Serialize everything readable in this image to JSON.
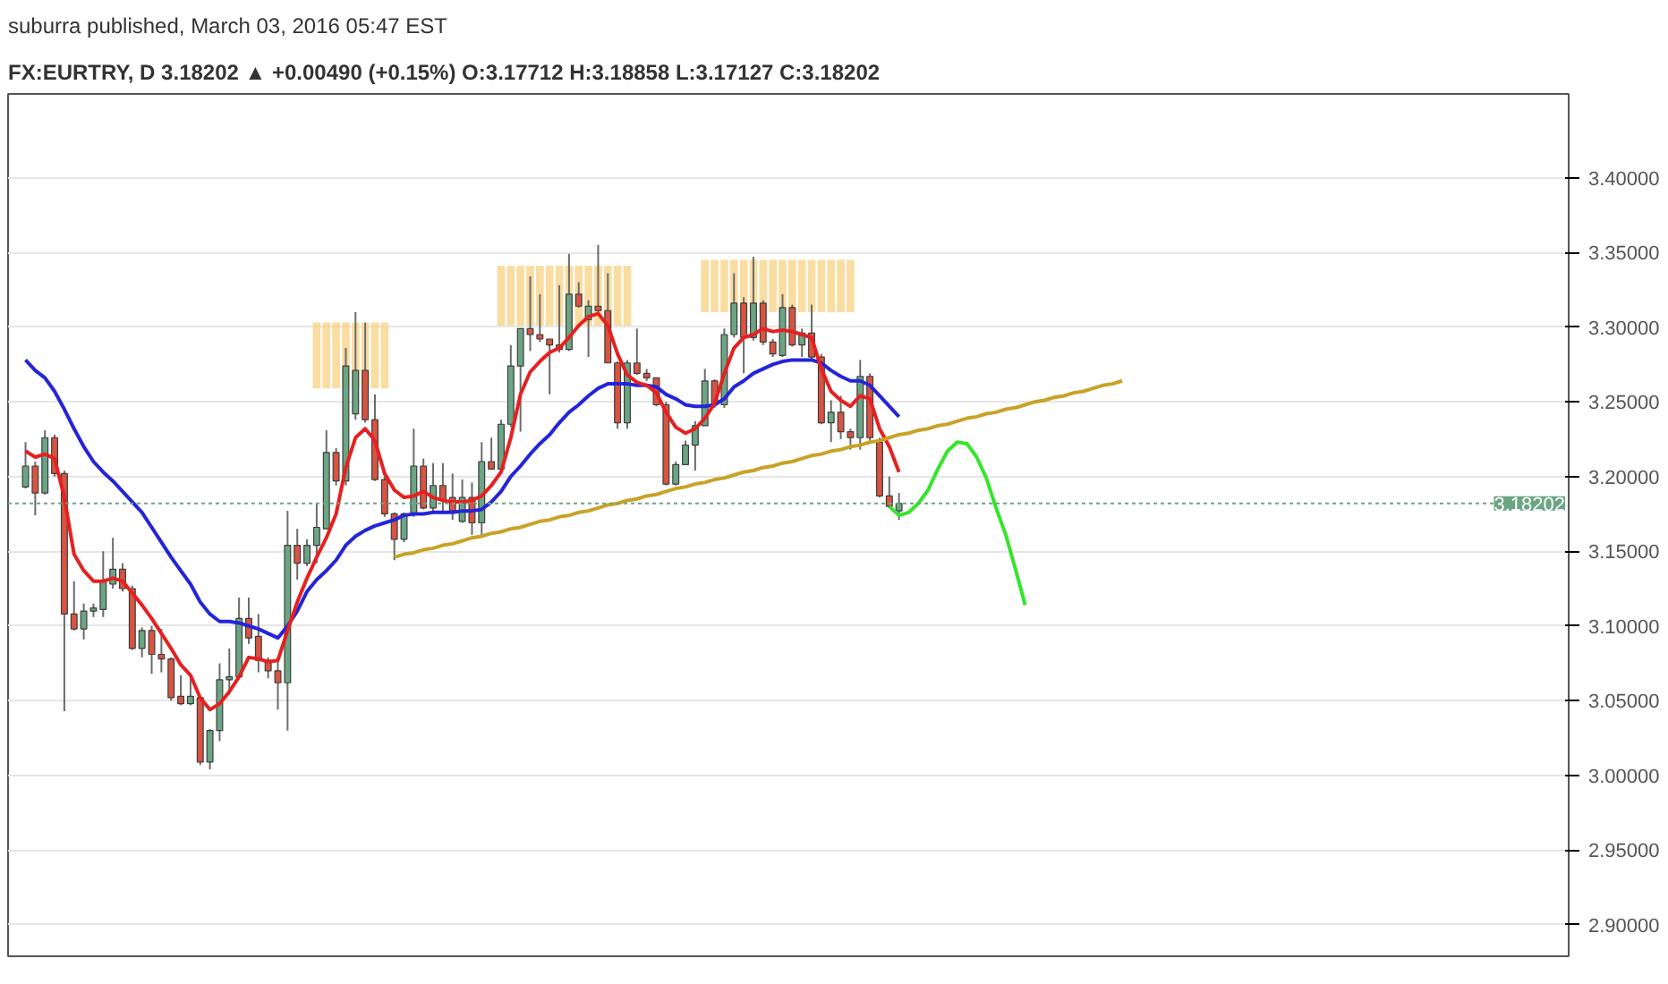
{
  "chart_data": {
    "type": "candlestick",
    "subtitle": "suburra published, March 03, 2016 05:47 EST",
    "title": "FX:EURTRY, D 3.18202 ▲ +0.00490 (+0.15%) O:3.17712 H:3.18858 L:3.17127 C:3.18202",
    "categories": [
      null,
      null,
      null,
      null,
      null,
      null,
      null,
      null,
      null,
      null,
      null,
      null,
      null,
      null,
      null,
      null,
      null,
      null,
      null,
      null,
      null,
      null,
      null,
      null,
      null,
      null,
      null,
      null,
      null,
      null,
      null,
      null,
      null,
      null,
      null,
      null,
      null,
      null,
      null,
      null,
      null,
      null,
      null,
      null,
      null,
      null,
      null,
      null,
      null,
      null,
      null,
      null,
      null,
      null,
      null,
      null,
      null,
      null,
      null,
      null,
      null,
      null,
      null,
      null,
      null,
      null,
      null,
      null,
      null,
      null,
      null,
      null,
      null,
      null,
      null,
      null,
      null,
      null,
      null,
      null,
      null,
      null,
      null,
      null,
      null,
      null,
      null,
      null,
      null,
      null,
      null,
      null,
      null,
      null,
      null,
      null,
      null,
      null,
      null,
      null,
      null,
      null,
      null,
      null,
      null,
      null,
      null,
      null,
      null,
      null,
      null,
      null,
      null,
      null
    ],
    "ohlc": [
      [
        3.193,
        3.223,
        3.192,
        3.207
      ],
      [
        3.207,
        3.21,
        3.174,
        3.189
      ],
      [
        3.189,
        3.231,
        3.188,
        3.226
      ],
      [
        3.226,
        3.228,
        3.2,
        3.202
      ],
      [
        3.202,
        3.204,
        3.043,
        3.108
      ],
      [
        3.108,
        3.13,
        3.097,
        3.098
      ],
      [
        3.098,
        3.115,
        3.091,
        3.11
      ],
      [
        3.11,
        3.115,
        3.106,
        3.112
      ],
      [
        3.111,
        3.15,
        3.106,
        3.13
      ],
      [
        3.128,
        3.159,
        3.125,
        3.138
      ],
      [
        3.138,
        3.142,
        3.123,
        3.125
      ],
      [
        3.125,
        3.127,
        3.084,
        3.085
      ],
      [
        3.085,
        3.099,
        3.079,
        3.097
      ],
      [
        3.097,
        3.1,
        3.068,
        3.081
      ],
      [
        3.081,
        3.098,
        3.069,
        3.078
      ],
      [
        3.078,
        3.079,
        3.05,
        3.052
      ],
      [
        3.053,
        3.067,
        3.047,
        3.048
      ],
      [
        3.048,
        3.065,
        3.047,
        3.053
      ],
      [
        3.052,
        3.053,
        3.007,
        3.009
      ],
      [
        3.009,
        3.031,
        3.004,
        3.03
      ],
      [
        3.03,
        3.075,
        3.023,
        3.064
      ],
      [
        3.064,
        3.085,
        3.054,
        3.066
      ],
      [
        3.066,
        3.119,
        3.065,
        3.105
      ],
      [
        3.105,
        3.119,
        3.088,
        3.092
      ],
      [
        3.093,
        3.108,
        3.069,
        3.077
      ],
      [
        3.077,
        3.079,
        3.065,
        3.07
      ],
      [
        3.07,
        3.079,
        3.044,
        3.062
      ],
      [
        3.062,
        3.177,
        3.03,
        3.154
      ],
      [
        3.154,
        3.165,
        3.131,
        3.142
      ],
      [
        3.142,
        3.158,
        3.14,
        3.154
      ],
      [
        3.154,
        3.182,
        3.142,
        3.166
      ],
      [
        3.165,
        3.231,
        3.165,
        3.216
      ],
      [
        3.216,
        3.219,
        3.194,
        3.197
      ],
      [
        3.197,
        3.286,
        3.194,
        3.274
      ],
      [
        3.242,
        3.31,
        3.238,
        3.271
      ],
      [
        3.271,
        3.303,
        3.236,
        3.238
      ],
      [
        3.238,
        3.255,
        3.197,
        3.198
      ],
      [
        3.198,
        3.2,
        3.173,
        3.175
      ],
      [
        3.175,
        3.176,
        3.144,
        3.158
      ],
      [
        3.158,
        3.176,
        3.156,
        3.175
      ],
      [
        3.175,
        3.232,
        3.173,
        3.207
      ],
      [
        3.207,
        3.212,
        3.178,
        3.179
      ],
      [
        3.179,
        3.209,
        3.177,
        3.194
      ],
      [
        3.194,
        3.209,
        3.175,
        3.184
      ],
      [
        3.186,
        3.202,
        3.171,
        3.177
      ],
      [
        3.17,
        3.198,
        3.169,
        3.186
      ],
      [
        3.186,
        3.196,
        3.161,
        3.169
      ],
      [
        3.169,
        3.223,
        3.161,
        3.21
      ],
      [
        3.21,
        3.226,
        3.205,
        3.205
      ],
      [
        3.205,
        3.238,
        3.203,
        3.235
      ],
      [
        3.235,
        3.288,
        3.233,
        3.274
      ],
      [
        3.274,
        3.299,
        3.23,
        3.299
      ],
      [
        3.299,
        3.334,
        3.284,
        3.295
      ],
      [
        3.295,
        3.322,
        3.29,
        3.292
      ],
      [
        3.292,
        3.292,
        3.255,
        3.288
      ],
      [
        3.288,
        3.328,
        3.283,
        3.285
      ],
      [
        3.285,
        3.349,
        3.284,
        3.322
      ],
      [
        3.322,
        3.33,
        3.313,
        3.314
      ],
      [
        3.305,
        3.318,
        3.28,
        3.314
      ],
      [
        3.314,
        3.355,
        3.31,
        3.311
      ],
      [
        3.311,
        3.336,
        3.276,
        3.276
      ],
      [
        3.276,
        3.277,
        3.232,
        3.236
      ],
      [
        3.236,
        3.278,
        3.232,
        3.276
      ],
      [
        3.276,
        3.299,
        3.268,
        3.269
      ],
      [
        3.269,
        3.272,
        3.264,
        3.266
      ],
      [
        3.266,
        3.266,
        3.247,
        3.248
      ],
      [
        3.248,
        3.25,
        3.194,
        3.195
      ],
      [
        3.195,
        3.21,
        3.194,
        3.208
      ],
      [
        3.208,
        3.224,
        3.208,
        3.221
      ],
      [
        3.221,
        3.237,
        3.204,
        3.234
      ],
      [
        3.234,
        3.272,
        3.234,
        3.264
      ],
      [
        3.264,
        3.265,
        3.246,
        3.248
      ],
      [
        3.248,
        3.299,
        3.246,
        3.295
      ],
      [
        3.295,
        3.336,
        3.293,
        3.316
      ],
      [
        3.316,
        3.32,
        3.269,
        3.293
      ],
      [
        3.293,
        3.347,
        3.291,
        3.316
      ],
      [
        3.316,
        3.318,
        3.288,
        3.29
      ],
      [
        3.29,
        3.292,
        3.28,
        3.282
      ],
      [
        3.281,
        3.322,
        3.28,
        3.313
      ],
      [
        3.313,
        3.315,
        3.287,
        3.288
      ],
      [
        3.288,
        3.299,
        3.28,
        3.296
      ],
      [
        3.296,
        3.315,
        3.278,
        3.28
      ],
      [
        3.28,
        3.282,
        3.235,
        3.236
      ],
      [
        3.236,
        3.251,
        3.223,
        3.243
      ],
      [
        3.243,
        3.254,
        3.225,
        3.23
      ],
      [
        3.23,
        3.232,
        3.218,
        3.226
      ],
      [
        3.226,
        3.278,
        3.218,
        3.267
      ],
      [
        3.267,
        3.269,
        3.224,
        3.226
      ],
      [
        3.223,
        3.226,
        3.186,
        3.187
      ],
      [
        3.187,
        3.2,
        3.179,
        3.18
      ],
      [
        3.177,
        3.189,
        3.171,
        3.182
      ],
      null,
      null,
      null,
      null,
      null,
      null,
      null,
      null,
      null,
      null,
      null,
      null,
      null,
      null,
      null,
      null,
      null,
      null,
      null,
      null,
      null,
      null,
      null
    ],
    "colors": [
      "#6ba583",
      "#d75442",
      "#6ba583",
      "#d75442",
      "#d75442",
      "#d75442",
      "#6ba583",
      "#6ba583",
      "#6ba583",
      "#6ba583",
      "#d75442",
      "#d75442",
      "#6ba583",
      "#d75442",
      "#d75442",
      "#d75442",
      "#d75442",
      "#6ba583",
      "#d75442",
      "#6ba583",
      "#6ba583",
      "#6ba583",
      "#6ba583",
      "#d75442",
      "#d75442",
      "#d75442",
      "#d75442",
      "#6ba583",
      "#d75442",
      "#6ba583",
      "#6ba583",
      "#6ba583",
      "#d75442",
      "#6ba583",
      "#6ba583",
      "#d75442",
      "#d75442",
      "#d75442",
      "#d75442",
      "#6ba583",
      "#6ba583",
      "#d75442",
      "#6ba583",
      "#d75442",
      "#d75442",
      "#6ba583",
      "#d75442",
      "#6ba583",
      "#d75442",
      "#6ba583",
      "#6ba583",
      "#6ba583",
      "#d75442",
      "#d75442",
      "#d75442",
      "#d75442",
      "#6ba583",
      "#d75442",
      "#6ba583",
      "#d75442",
      "#d75442",
      "#d75442",
      "#6ba583",
      "#d75442",
      "#d75442",
      "#d75442",
      "#d75442",
      "#6ba583",
      "#6ba583",
      "#6ba583",
      "#6ba583",
      "#d75442",
      "#6ba583",
      "#6ba583",
      "#d75442",
      "#6ba583",
      "#d75442",
      "#d75442",
      "#6ba583",
      "#d75442",
      "#6ba583",
      "#d75442",
      "#d75442",
      "#6ba583",
      "#d75442",
      "#d75442",
      "#6ba583",
      "#d75442",
      "#d75442",
      "#d75442",
      "#6ba583",
      null,
      null,
      null,
      null,
      null,
      null,
      null,
      null,
      null,
      null,
      null,
      null,
      null,
      null,
      null,
      null,
      null,
      null,
      null,
      null,
      null,
      null,
      null
    ],
    "series": [
      {
        "type": "bar",
        "color": "#f7d58a",
        "base": [
          null,
          null,
          null,
          null,
          null,
          null,
          null,
          null,
          null,
          null,
          null,
          null,
          null,
          null,
          null,
          null,
          null,
          null,
          null,
          null,
          null,
          null,
          null,
          null,
          null,
          null,
          null,
          null,
          null,
          null,
          3.259,
          3.259,
          3.259,
          3.259,
          3.259,
          3.259,
          3.259,
          3.259,
          null,
          null,
          null,
          null,
          null,
          null,
          null,
          null,
          null,
          null,
          null,
          3.301,
          3.301,
          3.301,
          3.301,
          3.301,
          3.301,
          3.301,
          3.301,
          3.301,
          3.301,
          3.301,
          3.301,
          3.301,
          3.301,
          null,
          null,
          null,
          null,
          null,
          null,
          null,
          3.31,
          3.31,
          3.31,
          3.31,
          3.31,
          3.31,
          3.31,
          3.31,
          3.31,
          3.31,
          3.31,
          3.31,
          3.31,
          3.31,
          3.31,
          3.31,
          null,
          null,
          null,
          null,
          null,
          null,
          null,
          null,
          null,
          null,
          null,
          null,
          null,
          null,
          null,
          null,
          null,
          null,
          null,
          null,
          null,
          null,
          null,
          null,
          null,
          null,
          null,
          null
        ],
        "values": [
          null,
          null,
          null,
          null,
          null,
          null,
          null,
          null,
          null,
          null,
          null,
          null,
          null,
          null,
          null,
          null,
          null,
          null,
          null,
          null,
          null,
          null,
          null,
          null,
          null,
          null,
          null,
          null,
          null,
          null,
          0.044,
          0.044,
          0.044,
          0.044,
          0.044,
          0.044,
          0.044,
          0.044,
          null,
          null,
          null,
          null,
          null,
          null,
          null,
          null,
          null,
          null,
          null,
          0.04,
          0.04,
          0.04,
          0.04,
          0.04,
          0.04,
          0.04,
          0.04,
          0.04,
          0.04,
          0.04,
          0.04,
          0.04,
          0.04,
          null,
          null,
          null,
          null,
          null,
          null,
          null,
          0.035,
          0.035,
          0.035,
          0.035,
          0.035,
          0.035,
          0.035,
          0.035,
          0.035,
          0.035,
          0.035,
          0.035,
          0.035,
          0.035,
          0.035,
          0.035,
          null,
          null,
          null,
          null,
          null,
          null,
          null,
          null,
          null,
          null,
          null,
          null,
          null,
          null,
          null,
          null,
          null,
          null,
          null,
          null,
          null,
          null,
          null,
          null,
          null,
          null,
          null,
          null
        ]
      },
      {
        "type": "line",
        "color": "#2424d8",
        "values": [
          3.278,
          3.271,
          3.266,
          3.257,
          3.245,
          3.232,
          3.22,
          3.21,
          3.203,
          3.197,
          3.19,
          3.183,
          3.176,
          3.166,
          3.156,
          3.146,
          3.137,
          3.128,
          3.116,
          3.108,
          3.103,
          3.103,
          3.102,
          3.1,
          3.098,
          3.095,
          3.092,
          3.1,
          3.11,
          3.123,
          3.131,
          3.137,
          3.144,
          3.154,
          3.16,
          3.164,
          3.167,
          3.169,
          3.171,
          3.174,
          3.175,
          3.175,
          3.176,
          3.176,
          3.176,
          3.177,
          3.177,
          3.178,
          3.183,
          3.19,
          3.2,
          3.207,
          3.215,
          3.222,
          3.228,
          3.236,
          3.243,
          3.248,
          3.254,
          3.259,
          3.262,
          3.262,
          3.262,
          3.261,
          3.261,
          3.26,
          3.255,
          3.252,
          3.248,
          3.247,
          3.247,
          3.248,
          3.252,
          3.26,
          3.264,
          3.269,
          3.272,
          3.275,
          3.277,
          3.278,
          3.278,
          3.278,
          3.276,
          3.271,
          3.267,
          3.264,
          3.264,
          3.261,
          3.254,
          3.247,
          3.24,
          null,
          null,
          null,
          null,
          null,
          null,
          null,
          null,
          null,
          null,
          null,
          null,
          null,
          null,
          null,
          null,
          null,
          null,
          null,
          null,
          null,
          null,
          null
        ]
      },
      {
        "type": "line",
        "color": "#e62020",
        "values": [
          3.217,
          3.213,
          3.215,
          3.212,
          3.186,
          3.148,
          3.137,
          3.13,
          3.13,
          3.132,
          3.13,
          3.122,
          3.114,
          3.105,
          3.095,
          3.085,
          3.074,
          3.067,
          3.052,
          3.044,
          3.048,
          3.056,
          3.066,
          3.079,
          3.078,
          3.076,
          3.077,
          3.097,
          3.116,
          3.132,
          3.146,
          3.159,
          3.175,
          3.206,
          3.226,
          3.232,
          3.224,
          3.202,
          3.191,
          3.186,
          3.187,
          3.19,
          3.186,
          3.184,
          3.183,
          3.183,
          3.184,
          3.187,
          3.194,
          3.203,
          3.226,
          3.255,
          3.27,
          3.277,
          3.283,
          3.286,
          3.293,
          3.301,
          3.307,
          3.309,
          3.301,
          3.282,
          3.268,
          3.263,
          3.261,
          3.256,
          3.243,
          3.233,
          3.229,
          3.232,
          3.239,
          3.249,
          3.269,
          3.286,
          3.293,
          3.295,
          3.299,
          3.297,
          3.298,
          3.297,
          3.295,
          3.293,
          3.272,
          3.257,
          3.251,
          3.247,
          3.254,
          3.252,
          3.232,
          3.22,
          3.203,
          null,
          null,
          null,
          null,
          null,
          null,
          null,
          null,
          null,
          null,
          null,
          null,
          null,
          null,
          null,
          null,
          null,
          null,
          null,
          null,
          null,
          null,
          null
        ]
      },
      {
        "type": "line",
        "color": "#c9a227",
        "values": [
          null,
          null,
          null,
          null,
          null,
          null,
          null,
          null,
          null,
          null,
          null,
          null,
          null,
          null,
          null,
          null,
          null,
          null,
          null,
          null,
          null,
          null,
          null,
          null,
          null,
          null,
          null,
          null,
          null,
          null,
          null,
          null,
          null,
          null,
          null,
          null,
          null,
          null,
          3.146,
          3.148,
          3.149,
          3.151,
          3.152,
          3.154,
          3.155,
          3.157,
          3.159,
          3.16,
          3.162,
          3.163,
          3.165,
          3.166,
          3.168,
          3.17,
          3.171,
          3.173,
          3.174,
          3.176,
          3.177,
          3.179,
          3.181,
          3.182,
          3.184,
          3.185,
          3.187,
          3.188,
          3.19,
          3.192,
          3.193,
          3.195,
          3.196,
          3.198,
          3.199,
          3.201,
          3.203,
          3.204,
          3.206,
          3.207,
          3.209,
          3.21,
          3.212,
          3.214,
          3.215,
          3.217,
          3.218,
          3.22,
          3.221,
          3.223,
          3.224,
          3.226,
          3.228,
          3.229,
          3.231,
          3.232,
          3.234,
          3.235,
          3.237,
          3.239,
          3.24,
          3.242,
          3.243,
          3.245,
          3.246,
          3.248,
          3.25,
          3.251,
          3.253,
          3.254,
          3.256,
          3.257,
          3.259,
          3.261,
          3.262,
          3.264
        ]
      },
      {
        "type": "line",
        "color": "#33e62b",
        "values": [
          null,
          null,
          null,
          null,
          null,
          null,
          null,
          null,
          null,
          null,
          null,
          null,
          null,
          null,
          null,
          null,
          null,
          null,
          null,
          null,
          null,
          null,
          null,
          null,
          null,
          null,
          null,
          null,
          null,
          null,
          null,
          null,
          null,
          null,
          null,
          null,
          null,
          null,
          null,
          null,
          null,
          null,
          null,
          null,
          null,
          null,
          null,
          null,
          null,
          null,
          null,
          null,
          null,
          null,
          null,
          null,
          null,
          null,
          null,
          null,
          null,
          null,
          null,
          null,
          null,
          null,
          null,
          null,
          null,
          null,
          null,
          null,
          null,
          null,
          null,
          null,
          null,
          null,
          null,
          null,
          null,
          null,
          null,
          null,
          null,
          null,
          null,
          null,
          null,
          3.18,
          3.174,
          3.176,
          3.182,
          3.191,
          3.205,
          3.217,
          3.223,
          3.222,
          3.213,
          3.199,
          3.179,
          3.161,
          3.138,
          3.114,
          null,
          null,
          null,
          null,
          null,
          null,
          null,
          null,
          null,
          null
        ]
      }
    ],
    "ylim": [
      2.879,
      3.456
    ],
    "yticks": [
      {
        "value": 2.9,
        "label": "2.90000"
      },
      {
        "value": 2.95,
        "label": "2.95000"
      },
      {
        "value": 3.0,
        "label": "3.00000"
      },
      {
        "value": 3.05,
        "label": "3.05000"
      },
      {
        "value": 3.1,
        "label": "3.10000"
      },
      {
        "value": 3.15,
        "label": "3.15000"
      },
      {
        "value": 3.2,
        "label": "3.20000"
      },
      {
        "value": 3.25,
        "label": "3.25000"
      },
      {
        "value": 3.3,
        "label": "3.30000"
      },
      {
        "value": 3.35,
        "label": "3.35000"
      },
      {
        "value": 3.4,
        "label": "3.40000"
      }
    ],
    "ref_lines": [
      {
        "axis": "y",
        "value": 3.18202,
        "label": "3.18202",
        "color": "#6ba583",
        "line_style": "dotted"
      }
    ],
    "grid": "y",
    "tick_labels": "y",
    "marker": "none",
    "line_style": "solid"
  }
}
